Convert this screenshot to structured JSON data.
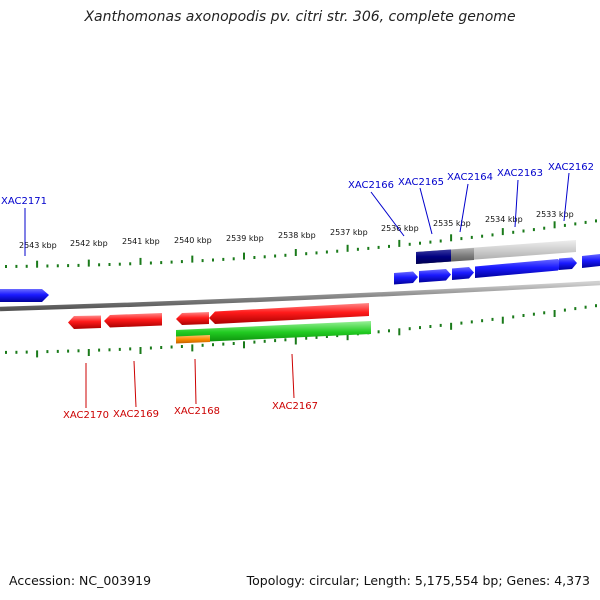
{
  "title": "Xanthomonas axonopodis pv. citri str. 306, complete genome",
  "footer": {
    "accession": "Accession: NC_003919",
    "summary": "Topology: circular; Length: 5,175,554 bp; Genes: 4,373"
  },
  "colors": {
    "forward_gene": "#1a1aff",
    "reverse_gene": "#ff1a1a",
    "cds_green": "#22cc22",
    "orange_feature": "#ff8c00",
    "navy_feature": "#000080",
    "gray_feature": "#808080",
    "lightgray_feature": "#c8c8c8",
    "backbone": "#8a8a8a",
    "tick": "#1a7a1a",
    "forward_label": "#0000cc",
    "reverse_label": "#cc0000"
  },
  "scale": {
    "labels": [
      "2543 kbp",
      "2542 kbp",
      "2541 kbp",
      "2540 kbp",
      "2539 kbp",
      "2538 kbp",
      "2537 kbp",
      "2536 kbp",
      "2535 kbp",
      "2534 kbp",
      "2533 kbp"
    ]
  },
  "forward_genes": [
    "XAC2171",
    "XAC2166",
    "XAC2165",
    "XAC2164",
    "XAC2163",
    "XAC2162"
  ],
  "reverse_genes": [
    "XAC2170",
    "XAC2169",
    "XAC2168",
    "XAC2167"
  ]
}
